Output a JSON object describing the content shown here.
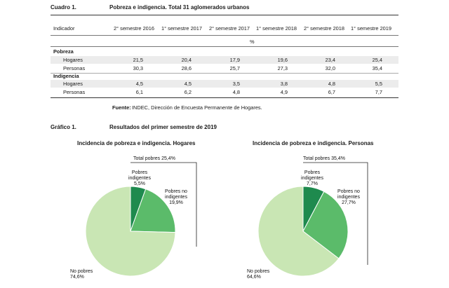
{
  "cuadro": {
    "label": "Cuadro 1.",
    "title": "Pobreza e indigencia. Total 31 aglomerados urbanos",
    "col_indicador": "Indicador",
    "columns": [
      "2° semestre 2016",
      "1° semestre 2017",
      "2° semestre 2017",
      "1° semestre 2018",
      "2° semestre 2018",
      "1° semestre 2019"
    ],
    "unit": "%",
    "groups": [
      {
        "name": "Pobreza",
        "rows": [
          {
            "label": "Hogares",
            "values": [
              "21,5",
              "20,4",
              "17,9",
              "19,6",
              "23,4",
              "25,4"
            ]
          },
          {
            "label": "Personas",
            "values": [
              "30,3",
              "28,6",
              "25,7",
              "27,3",
              "32,0",
              "35,4"
            ]
          }
        ]
      },
      {
        "name": "Indigencia",
        "rows": [
          {
            "label": "Hogares",
            "values": [
              "4,5",
              "4,5",
              "3,5",
              "3,8",
              "4,8",
              "5,5"
            ]
          },
          {
            "label": "Personas",
            "values": [
              "6,1",
              "6,2",
              "4,8",
              "4,9",
              "6,7",
              "7,7"
            ]
          }
        ]
      }
    ],
    "source_label": "Fuente:",
    "source_text": "INDEC, Dirección de Encuesta Permanente de Hogares."
  },
  "grafico": {
    "label": "Gráfico 1.",
    "title": "Resultados del primer semestre de 2019"
  },
  "colors": {
    "dark": "#1e8a4e",
    "mid": "#5bbb6a",
    "light": "#c9e6b4",
    "band": "#ececec"
  },
  "chart_data": [
    {
      "type": "pie",
      "title": "Incidencia de pobreza e indigencia. Hogares",
      "total_label": "Total pobres 25,4%",
      "slices": [
        {
          "name": "Pobres indigentes",
          "value": 5.5,
          "label_line1": "Pobres",
          "label_line2": "indigentes",
          "value_label": "5,5%"
        },
        {
          "name": "Pobres no indigentes",
          "value": 19.9,
          "label_line1": "Pobres no",
          "label_line2": "indigentes",
          "value_label": "19,9%"
        },
        {
          "name": "No pobres",
          "value": 74.6,
          "label_line1": "No pobres",
          "label_line2": "",
          "value_label": "74,6%"
        }
      ]
    },
    {
      "type": "pie",
      "title": "Incidencia de pobreza e indigencia. Personas",
      "total_label": "Total pobres 35,4%",
      "slices": [
        {
          "name": "Pobres indigentes",
          "value": 7.7,
          "label_line1": "Pobres",
          "label_line2": "indigentes",
          "value_label": "7,7%"
        },
        {
          "name": "Pobres no indigentes",
          "value": 27.7,
          "label_line1": "Pobres no",
          "label_line2": "indigentes",
          "value_label": "27,7%"
        },
        {
          "name": "No pobres",
          "value": 64.6,
          "label_line1": "No pobres",
          "label_line2": "",
          "value_label": "64,6%"
        }
      ]
    }
  ]
}
